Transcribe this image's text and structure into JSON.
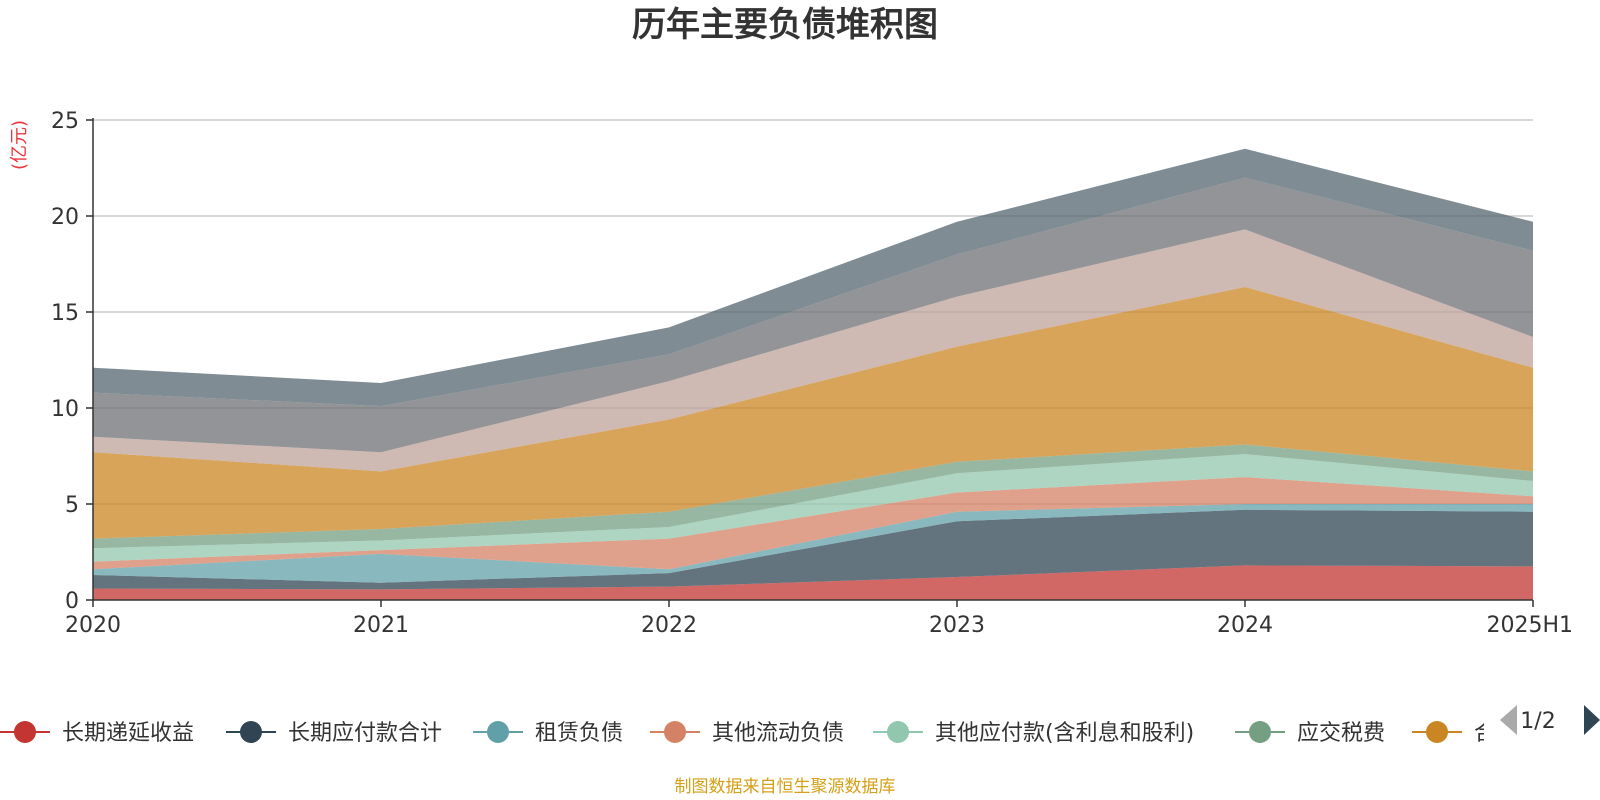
{
  "chart_data": {
    "type": "area",
    "stacked": true,
    "title": "历年主要负债堆积图",
    "ylabel": "(亿元)",
    "xlabel": "",
    "categories": [
      "2020",
      "2021",
      "2022",
      "2023",
      "2024",
      "2025H1"
    ],
    "ylim": [
      0,
      25
    ],
    "yticks": [
      0,
      5,
      10,
      15,
      20,
      25
    ],
    "grid": true,
    "legend_position": "bottom",
    "series": [
      {
        "name": "长期递延收益",
        "color": "#c23531",
        "values": [
          0.6,
          0.55,
          0.7,
          1.2,
          1.8,
          1.75
        ]
      },
      {
        "name": "长期应付款合计",
        "color": "#2f4554",
        "values": [
          0.7,
          0.35,
          0.7,
          2.9,
          2.9,
          2.85
        ]
      },
      {
        "name": "租赁负债",
        "color": "#61a0a8",
        "values": [
          0.3,
          1.5,
          0.2,
          0.5,
          0.3,
          0.4
        ]
      },
      {
        "name": "其他流动负债",
        "color": "#d48265",
        "values": [
          0.4,
          0.2,
          1.6,
          1.0,
          1.4,
          0.4
        ]
      },
      {
        "name": "其他应付款(含利息和股利)",
        "color": "#91c7ae",
        "values": [
          0.7,
          0.5,
          0.6,
          1.0,
          1.2,
          0.8
        ]
      },
      {
        "name": "应交税费",
        "color": "#749f83",
        "values": [
          0.5,
          0.6,
          0.8,
          0.6,
          0.5,
          0.5
        ]
      },
      {
        "name": "合同负债",
        "color": "#ca8622",
        "values": [
          4.5,
          3.0,
          4.8,
          6.0,
          8.2,
          5.4
        ]
      },
      {
        "name": "",
        "color": "#bda29a",
        "values": [
          0.8,
          1.0,
          2.0,
          2.6,
          3.0,
          1.6
        ]
      },
      {
        "name": "",
        "color": "#6e7074",
        "values": [
          2.3,
          2.4,
          1.4,
          2.2,
          2.7,
          4.5
        ]
      },
      {
        "name": "",
        "color": "#546570",
        "values": [
          1.3,
          1.2,
          1.4,
          1.7,
          1.5,
          1.5
        ]
      }
    ]
  },
  "legend": {
    "page_indicator": "1/2",
    "visible_items": [
      {
        "label": "长期递延收益",
        "color": "#c23531"
      },
      {
        "label": "长期应付款合计",
        "color": "#2f4554"
      },
      {
        "label": "租赁负债",
        "color": "#61a0a8"
      },
      {
        "label": "其他流动负债",
        "color": "#d48265"
      },
      {
        "label": "其他应付款(含利息和股利)",
        "color": "#91c7ae"
      },
      {
        "label": "应交税费",
        "color": "#749f83"
      },
      {
        "label": "合同负债",
        "color": "#ca8622"
      }
    ],
    "prev_icon": "triangle-left-icon",
    "next_icon": "triangle-right-icon"
  },
  "footer": {
    "source": "制图数据来自恒生聚源数据库"
  }
}
